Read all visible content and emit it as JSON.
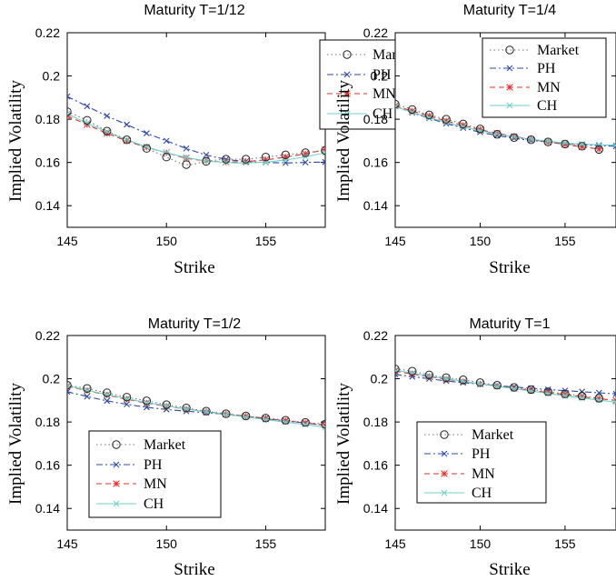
{
  "colors": {
    "Market": "#444444",
    "PH": "#2b48a8",
    "MN": "#e0302a",
    "CH": "#6fd2cc"
  },
  "chart_data": [
    {
      "type": "line",
      "title": "Maturity T=1/12",
      "xlabel": "Strike",
      "ylabel": "Implied Volatility",
      "xlim": [
        145,
        158
      ],
      "ylim": [
        0.13,
        0.22
      ],
      "xticks": [
        "145",
        "150",
        "155"
      ],
      "yticks": [
        "0.14",
        "0.16",
        "0.18",
        "0.2",
        "0.22"
      ],
      "legend_position": "top-right",
      "grid": false,
      "series": [
        {
          "name": "Market",
          "x": [
            145,
            146,
            147,
            148,
            149,
            150,
            151,
            152,
            153,
            154,
            155,
            156,
            157,
            158
          ],
          "values": [
            0.1835,
            0.1795,
            0.1745,
            0.1705,
            0.1665,
            0.1625,
            0.159,
            0.1605,
            0.1615,
            0.1615,
            0.1625,
            0.1635,
            0.1645,
            0.1655
          ]
        },
        {
          "name": "PH",
          "x": [
            145,
            146,
            147,
            148,
            149,
            150,
            151,
            152,
            153,
            154,
            155,
            156,
            157,
            158
          ],
          "values": [
            0.1905,
            0.186,
            0.1815,
            0.1775,
            0.1735,
            0.17,
            0.1665,
            0.1635,
            0.1615,
            0.1605,
            0.16,
            0.1598,
            0.16,
            0.1602
          ]
        },
        {
          "name": "MN",
          "x": [
            145,
            146,
            147,
            148,
            149,
            150,
            151,
            152,
            153,
            154,
            155,
            156,
            157,
            158
          ],
          "values": [
            0.1815,
            0.1775,
            0.1735,
            0.17,
            0.167,
            0.1645,
            0.162,
            0.1608,
            0.1602,
            0.1605,
            0.1612,
            0.1625,
            0.164,
            0.166
          ]
        },
        {
          "name": "CH",
          "x": [
            145,
            146,
            147,
            148,
            149,
            150,
            151,
            152,
            153,
            154,
            155,
            156,
            157,
            158
          ],
          "values": [
            0.1825,
            0.1782,
            0.1742,
            0.1705,
            0.1672,
            0.1645,
            0.1623,
            0.1608,
            0.16,
            0.1598,
            0.1602,
            0.1612,
            0.1626,
            0.1645
          ]
        }
      ]
    },
    {
      "type": "line",
      "title": "Maturity T=1/4",
      "xlabel": "Strike",
      "ylabel": "Implied Volatility",
      "xlim": [
        145,
        158
      ],
      "ylim": [
        0.13,
        0.22
      ],
      "xticks": [
        "145",
        "150",
        "155"
      ],
      "yticks": [
        "0.14",
        "0.16",
        "0.18",
        "0.2",
        "0.22"
      ],
      "legend_position": "top-right",
      "grid": false,
      "series": [
        {
          "name": "Market",
          "x": [
            145,
            146,
            147,
            148,
            149,
            150,
            151,
            152,
            153,
            154,
            155,
            156,
            157
          ],
          "values": [
            0.187,
            0.1845,
            0.182,
            0.18,
            0.1778,
            0.1755,
            0.173,
            0.1715,
            0.1705,
            0.1695,
            0.1685,
            0.1675,
            0.166
          ]
        },
        {
          "name": "PH",
          "x": [
            145,
            146,
            147,
            148,
            149,
            150,
            151,
            152,
            153,
            154,
            155,
            156,
            157,
            158
          ],
          "values": [
            0.186,
            0.183,
            0.1805,
            0.178,
            0.176,
            0.174,
            0.1725,
            0.1712,
            0.1702,
            0.1695,
            0.1688,
            0.1682,
            0.1678,
            0.1675
          ]
        },
        {
          "name": "MN",
          "x": [
            145,
            146,
            147,
            148,
            149,
            150,
            151,
            152,
            153,
            154,
            155,
            156,
            157
          ],
          "values": [
            0.1862,
            0.1838,
            0.1815,
            0.1792,
            0.1772,
            0.1752,
            0.1735,
            0.172,
            0.1707,
            0.1695,
            0.1683,
            0.1672,
            0.1662
          ]
        },
        {
          "name": "CH",
          "x": [
            145,
            146,
            147,
            148,
            149,
            150,
            151,
            152,
            153,
            154,
            155,
            156,
            157,
            158
          ],
          "values": [
            0.1858,
            0.1832,
            0.1808,
            0.1785,
            0.1765,
            0.1747,
            0.1732,
            0.1718,
            0.1707,
            0.1698,
            0.169,
            0.1685,
            0.1682,
            0.168
          ]
        }
      ]
    },
    {
      "type": "line",
      "title": "Maturity T=1/2",
      "xlabel": "Strike",
      "ylabel": "Implied Volatility",
      "xlim": [
        145,
        158
      ],
      "ylim": [
        0.13,
        0.22
      ],
      "xticks": [
        "145",
        "150",
        "155"
      ],
      "yticks": [
        "0.14",
        "0.16",
        "0.18",
        "0.2",
        "0.22"
      ],
      "legend_position": "bottom-left",
      "grid": false,
      "series": [
        {
          "name": "Market",
          "x": [
            145,
            146,
            147,
            148,
            149,
            150,
            151,
            152,
            153,
            154,
            155,
            156,
            157,
            158
          ],
          "values": [
            0.197,
            0.1955,
            0.1935,
            0.1915,
            0.1898,
            0.188,
            0.1865,
            0.185,
            0.1838,
            0.1828,
            0.1818,
            0.1808,
            0.1798,
            0.179
          ]
        },
        {
          "name": "PH",
          "x": [
            145,
            146,
            147,
            148,
            149,
            150,
            151,
            152,
            153,
            154,
            155,
            156,
            157,
            158
          ],
          "values": [
            0.194,
            0.1918,
            0.1898,
            0.1882,
            0.1868,
            0.1858,
            0.185,
            0.1843,
            0.1835,
            0.1825,
            0.1815,
            0.1805,
            0.1795,
            0.1785
          ]
        },
        {
          "name": "MN",
          "x": [
            145,
            146,
            147,
            148,
            149,
            150,
            151,
            152,
            153,
            154,
            155,
            156,
            157,
            158
          ],
          "values": [
            0.1965,
            0.1945,
            0.1925,
            0.1905,
            0.1888,
            0.1873,
            0.186,
            0.1848,
            0.1837,
            0.1827,
            0.1817,
            0.1806,
            0.1796,
            0.1785
          ]
        },
        {
          "name": "CH",
          "x": [
            145,
            146,
            147,
            148,
            149,
            150,
            151,
            152,
            153,
            154,
            155,
            156,
            157,
            158
          ],
          "values": [
            0.1968,
            0.1947,
            0.1927,
            0.1908,
            0.189,
            0.1875,
            0.186,
            0.1847,
            0.1835,
            0.1823,
            0.1811,
            0.1799,
            0.1788,
            0.1775
          ]
        }
      ]
    },
    {
      "type": "line",
      "title": "Maturity T=1",
      "xlabel": "Strike",
      "ylabel": "Implied Volatility",
      "xlim": [
        145,
        158
      ],
      "ylim": [
        0.13,
        0.22
      ],
      "xticks": [
        "145",
        "150",
        "155"
      ],
      "yticks": [
        "0.14",
        "0.16",
        "0.18",
        "0.2",
        "0.22"
      ],
      "legend_position": "bottom-left",
      "grid": false,
      "series": [
        {
          "name": "Market",
          "x": [
            145,
            146,
            147,
            148,
            149,
            150,
            151,
            152,
            153,
            154,
            155,
            156,
            157
          ],
          "values": [
            0.2045,
            0.2035,
            0.2018,
            0.2005,
            0.1995,
            0.1982,
            0.197,
            0.196,
            0.195,
            0.194,
            0.193,
            0.192,
            0.191
          ]
        },
        {
          "name": "PH",
          "x": [
            145,
            146,
            147,
            148,
            149,
            150,
            151,
            152,
            153,
            154,
            155,
            156,
            157,
            158
          ],
          "values": [
            0.202,
            0.201,
            0.2,
            0.199,
            0.1982,
            0.1975,
            0.1968,
            0.1962,
            0.1956,
            0.195,
            0.1945,
            0.194,
            0.1935,
            0.193
          ]
        },
        {
          "name": "MN",
          "x": [
            145,
            146,
            147,
            148,
            149,
            150,
            151,
            152,
            153,
            154,
            155,
            156,
            157,
            158
          ],
          "values": [
            0.2035,
            0.2022,
            0.201,
            0.1998,
            0.1987,
            0.1976,
            0.1966,
            0.1956,
            0.1946,
            0.1936,
            0.1927,
            0.1917,
            0.1908,
            0.19
          ]
        },
        {
          "name": "CH",
          "x": [
            145,
            146,
            147,
            148,
            149,
            150,
            151,
            152,
            153,
            154,
            155,
            156,
            157,
            158
          ],
          "values": [
            0.204,
            0.2026,
            0.2013,
            0.2,
            0.1988,
            0.1976,
            0.1965,
            0.1954,
            0.1943,
            0.1932,
            0.1921,
            0.1911,
            0.1901,
            0.1892
          ]
        }
      ]
    }
  ]
}
